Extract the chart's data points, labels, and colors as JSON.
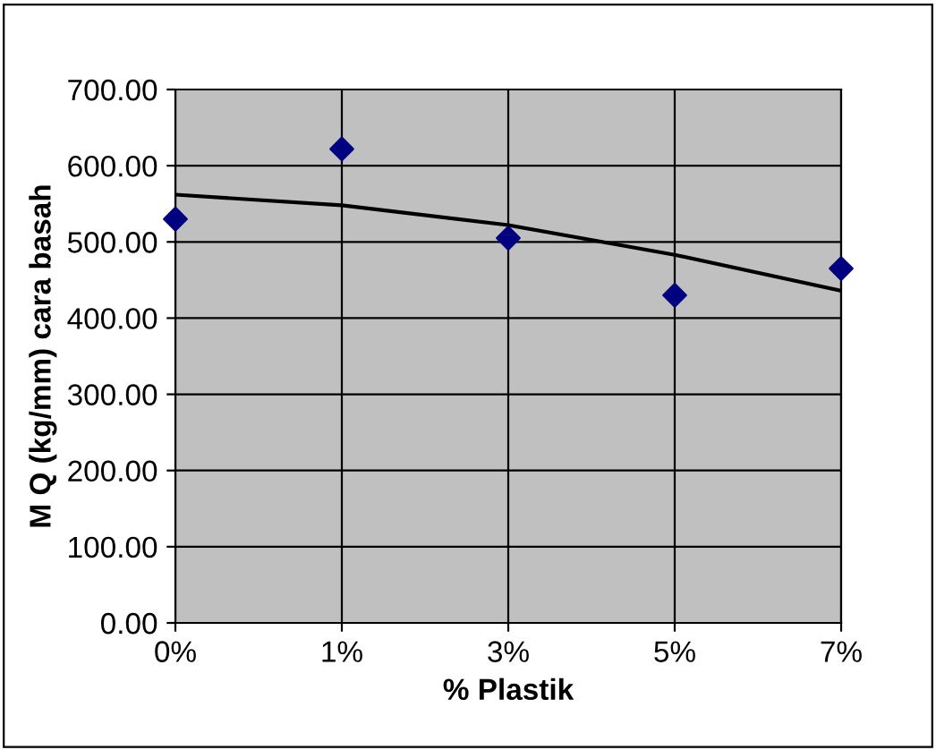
{
  "chart_data": {
    "type": "scatter",
    "xlabel": "% Plastik",
    "ylabel": "M Q (kg/mm) cara basah",
    "categories": [
      "0%",
      "1%",
      "3%",
      "5%",
      "7%"
    ],
    "series": [
      {
        "color": "#000080",
        "marker": "diamond",
        "values": [
          530,
          622,
          505,
          430,
          465
        ]
      },
      {
        "type": "line",
        "color": "#000000",
        "marker": "none",
        "line_style": "solid",
        "values": [
          562,
          548,
          522,
          483,
          436
        ]
      }
    ],
    "ylim": [
      0,
      700
    ],
    "yticks": [
      {
        "value": 0,
        "label": "0.00"
      },
      {
        "value": 100,
        "label": "100.00"
      },
      {
        "value": 200,
        "label": "200.00"
      },
      {
        "value": 300,
        "label": "300.00"
      },
      {
        "value": 400,
        "label": "400.00"
      },
      {
        "value": 500,
        "label": "500.00"
      },
      {
        "value": 600,
        "label": "600.00"
      },
      {
        "value": 700,
        "label": "700.00"
      }
    ],
    "grid": true
  }
}
